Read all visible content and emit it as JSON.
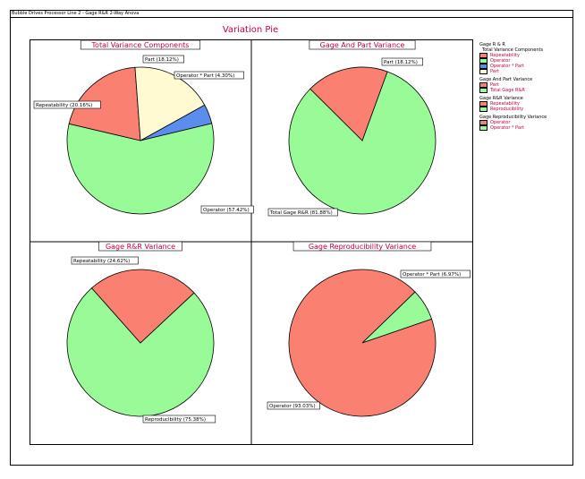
{
  "header": {
    "text": "Bubble Drives Processor Line 2 - Gage R&R 2-Way Anova"
  },
  "title": "Variation Pie",
  "colors": {
    "red": "#fa8072",
    "green": "#98fb98",
    "blue": "#5b8def",
    "cream": "#fffad2",
    "title": "#c8003c"
  },
  "chart_data": [
    {
      "type": "pie",
      "title": "Total Variance Components",
      "slices": [
        {
          "label": "Operator * Part",
          "value": 4.3,
          "color": "#5b8def",
          "annotation": "Operator * Part (4.30%)"
        },
        {
          "label": "Operator",
          "value": 57.42,
          "color": "#98fb98",
          "annotation": "Operator (57.42%)"
        },
        {
          "label": "Repeatability",
          "value": 20.16,
          "color": "#fa8072",
          "annotation": "Repeatability (20.16%)"
        },
        {
          "label": "Part",
          "value": 18.12,
          "color": "#fffad2",
          "annotation": "Part (18.12%)"
        }
      ]
    },
    {
      "type": "pie",
      "title": "Gage And Part Variance",
      "slices": [
        {
          "label": "Total Gage R&R",
          "value": 81.88,
          "color": "#98fb98",
          "annotation": "Total Gage R&R (81.88%)"
        },
        {
          "label": "Part",
          "value": 18.12,
          "color": "#fa8072",
          "annotation": "Part (18.12%)"
        }
      ]
    },
    {
      "type": "pie",
      "title": "Gage R&R Variance",
      "slices": [
        {
          "label": "Reproducibility",
          "value": 75.38,
          "color": "#98fb98",
          "annotation": "Reproducibility (75.38%)"
        },
        {
          "label": "Repeatability",
          "value": 24.62,
          "color": "#fa8072",
          "annotation": "Repeatability (24.62%)"
        }
      ]
    },
    {
      "type": "pie",
      "title": "Gage Reproducibility Variance",
      "slices": [
        {
          "label": "Operator * Part",
          "value": 6.97,
          "color": "#98fb98",
          "annotation": "Operator * Part (6.97%)"
        },
        {
          "label": "Operator",
          "value": 93.03,
          "color": "#fa8072",
          "annotation": "Operator (93.03%)"
        }
      ]
    }
  ],
  "legend": [
    {
      "title": "Gage R & R",
      "sub": "Total Variance Components",
      "items": [
        {
          "label": "Repeatability",
          "color": "#fa8072"
        },
        {
          "label": "Operator",
          "color": "#98fb98"
        },
        {
          "label": "Operator * Part",
          "color": "#5b8def"
        },
        {
          "label": "Part",
          "color": "#fffad2"
        }
      ]
    },
    {
      "title": "Gage And Part Variance",
      "items": [
        {
          "label": "Part",
          "color": "#fa8072"
        },
        {
          "label": "Total Gage R&R",
          "color": "#98fb98"
        }
      ]
    },
    {
      "title": "Gage R&R Variance",
      "items": [
        {
          "label": "Repeatability",
          "color": "#fa8072"
        },
        {
          "label": "Reproducibility",
          "color": "#98fb98"
        }
      ]
    },
    {
      "title": "Gage Reproducibility Variance",
      "items": [
        {
          "label": "Operator",
          "color": "#fa8072"
        },
        {
          "label": "Operator * Part",
          "color": "#98fb98"
        }
      ]
    }
  ]
}
